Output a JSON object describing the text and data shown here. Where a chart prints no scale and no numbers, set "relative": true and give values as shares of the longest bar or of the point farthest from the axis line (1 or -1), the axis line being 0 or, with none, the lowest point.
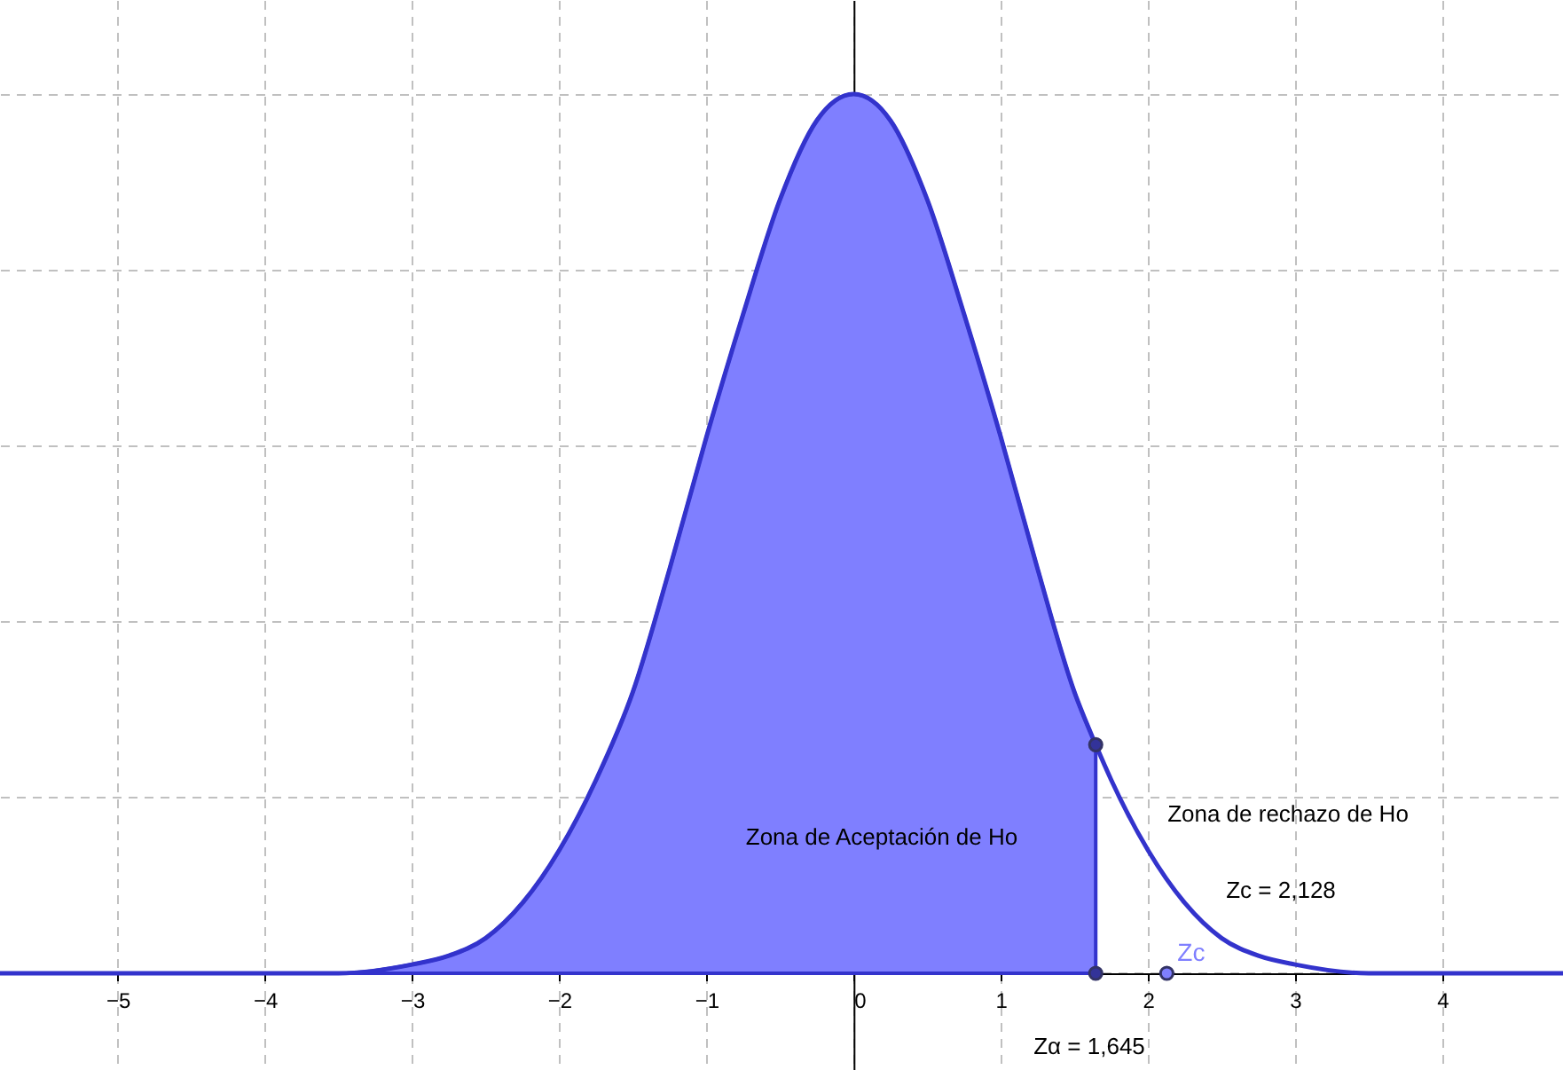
{
  "chart_data": {
    "type": "line",
    "relative": true,
    "xlim": [
      -5.8,
      4.82
    ],
    "xticks": [
      -5,
      -4,
      -3,
      -2,
      -1,
      0,
      1,
      2,
      3,
      4
    ],
    "grid": true,
    "tick_labels": "x",
    "series": [
      {
        "type": "area",
        "color": "#7f7fff",
        "x": [
          -5.8,
          -5.5,
          -5,
          -4.5,
          -4,
          -3.5,
          -3,
          -2.75,
          -2.5,
          -2.25,
          -2,
          -1.75,
          -1.5,
          -1.25,
          -1,
          -0.75,
          -0.5,
          -0.25,
          0,
          0.25,
          0.5,
          0.75,
          1,
          1.25,
          1.5,
          1.645
        ],
        "values": [
          0,
          0,
          0,
          0,
          0,
          0,
          0.01,
          0.02,
          0.04,
          0.08,
          0.14,
          0.22,
          0.32,
          0.46,
          0.61,
          0.75,
          0.88,
          0.97,
          1,
          0.97,
          0.88,
          0.75,
          0.61,
          0.46,
          0.32,
          0.26
        ]
      },
      {
        "color": "#3333cc",
        "x": [
          -5.8,
          -5.5,
          -5,
          -4.5,
          -4,
          -3.5,
          -3,
          -2.75,
          -2.5,
          -2.25,
          -2,
          -1.75,
          -1.5,
          -1.25,
          -1,
          -0.75,
          -0.5,
          -0.25,
          0,
          0.25,
          0.5,
          0.75,
          1,
          1.25,
          1.5,
          1.645,
          1.75,
          2,
          2.25,
          2.5,
          2.75,
          3,
          3.5,
          4,
          4.5,
          4.82
        ],
        "values": [
          0,
          0,
          0,
          0,
          0,
          0,
          0.01,
          0.02,
          0.04,
          0.08,
          0.14,
          0.22,
          0.32,
          0.46,
          0.61,
          0.75,
          0.88,
          0.97,
          1,
          0.97,
          0.88,
          0.75,
          0.61,
          0.46,
          0.32,
          0.26,
          0.22,
          0.14,
          0.08,
          0.04,
          0.02,
          0.01,
          0,
          0,
          0,
          0
        ]
      },
      {
        "type": "scatter",
        "color": "#333399",
        "x": [
          1.645,
          1.645
        ],
        "values": [
          0.26,
          0
        ]
      },
      {
        "type": "scatter",
        "name": "Zc",
        "color": "#7f7fff",
        "x": [
          2.128
        ],
        "values": [
          0
        ]
      }
    ],
    "annotations": [
      "Zona de Aceptación de Ho",
      "Zona de rechazo de Ho",
      "Zc = 2,128",
      "Zα = 1,645"
    ]
  }
}
